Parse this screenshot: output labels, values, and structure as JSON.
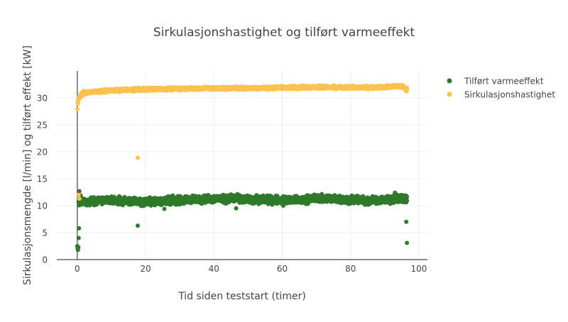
{
  "chart_data": {
    "type": "scatter",
    "title": "Sirkulasjonshastighet og tilført varmeeffekt",
    "xlabel": "Tid siden teststart (timer)",
    "ylabel": "Sirkulasjonsmengde [l/min] og tilført effekt [kW]",
    "xlim": [
      -6,
      102.5
    ],
    "ylim": [
      0,
      35
    ],
    "xticks": [
      0,
      20,
      40,
      60,
      80,
      100
    ],
    "yticks": [
      0,
      5,
      10,
      15,
      20,
      25,
      30
    ],
    "grid": true,
    "legend_position": "top-right",
    "series": [
      {
        "name": "Tilført varmeeffekt",
        "color": "#2f7a2a",
        "trend": [
          [
            0.4,
            10.6
          ],
          [
            5,
            10.9
          ],
          [
            10,
            11.0
          ],
          [
            15,
            10.8
          ],
          [
            20,
            10.7
          ],
          [
            25,
            10.9
          ],
          [
            30,
            11.0
          ],
          [
            35,
            11.2
          ],
          [
            40,
            11.3
          ],
          [
            45,
            11.3
          ],
          [
            50,
            11.2
          ],
          [
            55,
            11.1
          ],
          [
            60,
            11.0
          ],
          [
            65,
            11.0
          ],
          [
            70,
            11.4
          ],
          [
            75,
            11.3
          ],
          [
            80,
            11.1
          ],
          [
            85,
            10.9
          ],
          [
            90,
            11.1
          ],
          [
            95,
            11.4
          ],
          [
            96.5,
            11.2
          ]
        ],
        "spread": 0.55,
        "outliers": [
          [
            0.0,
            2.5
          ],
          [
            0.1,
            2.0
          ],
          [
            0.2,
            1.8
          ],
          [
            0.3,
            2.3
          ],
          [
            0.4,
            4.0
          ],
          [
            0.5,
            5.8
          ],
          [
            0.6,
            12.7
          ],
          [
            1.0,
            11.9
          ],
          [
            17.7,
            6.3
          ],
          [
            46.5,
            9.5
          ],
          [
            96.3,
            7.0
          ],
          [
            96.5,
            3.1
          ],
          [
            25.5,
            9.4
          ],
          [
            60.3,
            10.0
          ],
          [
            93,
            12.4
          ]
        ]
      },
      {
        "name": "Sirkulasjonshastighet",
        "color": "#fdc14f",
        "trend": [
          [
            0.3,
            29.8
          ],
          [
            1,
            30.5
          ],
          [
            2,
            30.9
          ],
          [
            4,
            31.1
          ],
          [
            8,
            31.3
          ],
          [
            15,
            31.5
          ],
          [
            20,
            31.6
          ],
          [
            30,
            31.7
          ],
          [
            40,
            31.8
          ],
          [
            50,
            31.8
          ],
          [
            60,
            31.9
          ],
          [
            70,
            32.0
          ],
          [
            80,
            31.9
          ],
          [
            90,
            32.0
          ],
          [
            95,
            32.2
          ],
          [
            96.5,
            31.6
          ]
        ],
        "spread": 0.22,
        "outliers": [
          [
            0.0,
            27.9
          ],
          [
            0.1,
            29.3
          ],
          [
            0.2,
            29.0
          ],
          [
            0.4,
            12.0
          ],
          [
            0.6,
            11.3
          ],
          [
            1.8,
            31.3
          ],
          [
            17.7,
            18.9
          ],
          [
            96.3,
            31.2
          ],
          [
            96.4,
            31.8
          ]
        ]
      }
    ]
  }
}
